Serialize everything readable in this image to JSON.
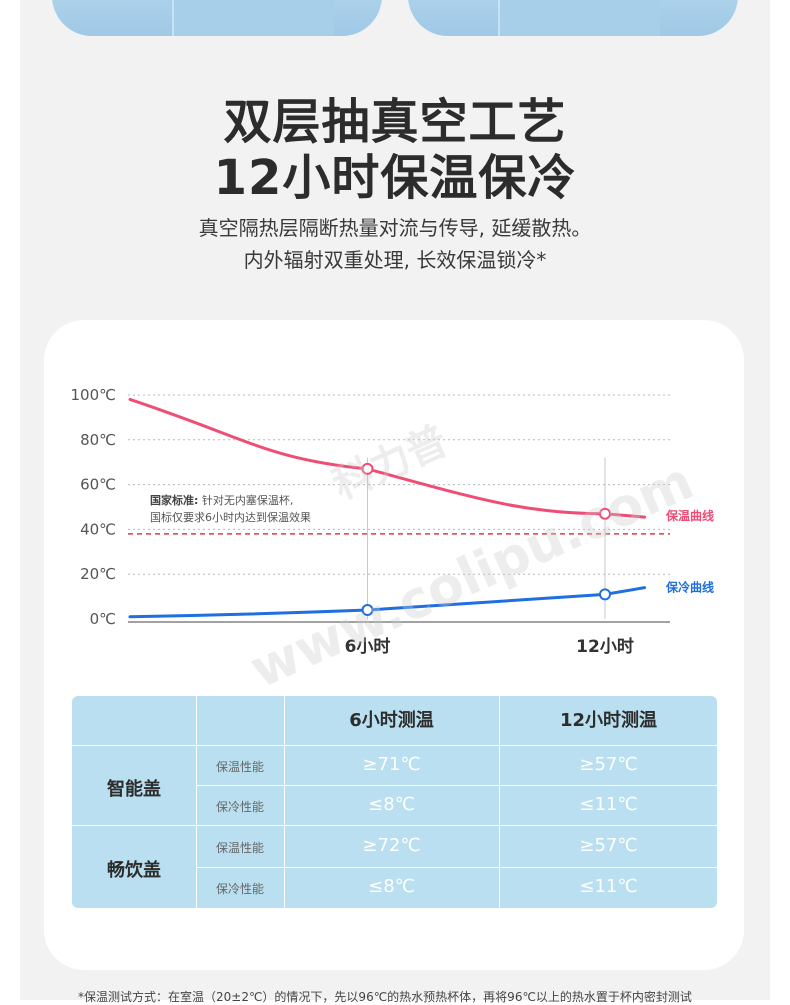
{
  "header": {
    "title_line1": "双层抽真空工艺",
    "title_line2": "12小时保温保冷",
    "subtitle_line1": "真空隔热层隔断热量对流与传导, 延缓散热。",
    "subtitle_line2": "内外辐射双重处理, 长效保温锁冷*"
  },
  "chart_data": {
    "type": "line",
    "x": [
      "0",
      "6小时",
      "12小时"
    ],
    "x_tick_labels": [
      "6小时",
      "12小时"
    ],
    "y_tick_labels": [
      "100℃",
      "80℃",
      "60℃",
      "40℃",
      "20℃",
      "0℃"
    ],
    "ylim": [
      0,
      100
    ],
    "series": [
      {
        "name": "保温曲线",
        "color": "#ef4d74",
        "points": [
          [
            0,
            98
          ],
          [
            6,
            67
          ],
          [
            12,
            47
          ]
        ]
      },
      {
        "name": "保冷曲线",
        "color": "#1f6fe0",
        "points": [
          [
            0,
            1
          ],
          [
            6,
            4
          ],
          [
            12,
            11
          ]
        ]
      }
    ],
    "reference_line": {
      "value": 38,
      "color": "#e23b3b"
    },
    "annotation_title": "国家标准:",
    "annotation_line1": " 针对无内塞保温杯,",
    "annotation_line2": "国标仅要求6小时内达到保温效果",
    "grid": true,
    "legend": "right"
  },
  "watermark": {
    "brand": "科力普",
    "url": "www.colipu.com"
  },
  "table": {
    "col_headers": [
      "6小时测温",
      "12小时测温"
    ],
    "groups": [
      {
        "name": "智能盖",
        "rows": [
          {
            "label": "保温性能",
            "v6": "≥71℃",
            "v12": "≥57℃"
          },
          {
            "label": "保冷性能",
            "v6": "≤8℃",
            "v12": "≤11℃"
          }
        ]
      },
      {
        "name": "畅饮盖",
        "rows": [
          {
            "label": "保温性能",
            "v6": "≥72℃",
            "v12": "≥57℃"
          },
          {
            "label": "保冷性能",
            "v6": "≤8℃",
            "v12": "≤11℃"
          }
        ]
      }
    ]
  },
  "footnote": "*保温测试方式：在室温（20±2℃）的情况下，先以96℃的热水预热杯体，再将96℃以上的热水置于杯内密封测试"
}
